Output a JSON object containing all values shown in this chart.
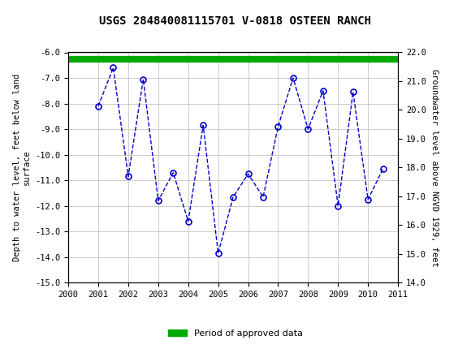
{
  "title": "USGS 284840081115701 V-0818 OSTEEN RANCH",
  "ylabel_left": "Depth to water level, feet below land\nsurface",
  "ylabel_right": "Groundwater level above NGVD 1929, feet",
  "background_color": "#ffffff",
  "plot_bg_color": "#ffffff",
  "grid_color": "#cccccc",
  "line_color": "#0000cc",
  "marker_color": "#0000cc",
  "bar_color": "#00aa00",
  "ylim_left": [
    -15.0,
    -6.0
  ],
  "ylim_right": [
    14.0,
    22.0
  ],
  "xlim": [
    2000,
    2011
  ],
  "yticks_left": [
    -15.0,
    -14.0,
    -13.0,
    -12.0,
    -11.0,
    -10.0,
    -9.0,
    -8.0,
    -7.0,
    -6.0
  ],
  "yticks_right": [
    14.0,
    15.0,
    16.0,
    17.0,
    18.0,
    19.0,
    20.0,
    21.0,
    22.0
  ],
  "xticks": [
    2000,
    2001,
    2002,
    2003,
    2004,
    2005,
    2006,
    2007,
    2008,
    2009,
    2010,
    2011
  ],
  "header_color": "#1a6b3c",
  "legend_label": "Period of approved data",
  "legend_bar_color": "#00aa00",
  "data_points_x": [
    2001.0,
    2001.5,
    2002.0,
    2002.5,
    2003.0,
    2003.5,
    2004.0,
    2004.5,
    2005.0,
    2005.5,
    2006.0,
    2006.5,
    2007.0,
    2007.5,
    2008.0,
    2008.5,
    2009.0,
    2009.5,
    2010.0,
    2010.5
  ],
  "data_points_y": [
    -8.1,
    -6.6,
    -10.85,
    -7.05,
    -11.8,
    -10.7,
    -12.6,
    -8.85,
    -13.85,
    -11.65,
    -10.75,
    -11.65,
    -8.9,
    -7.0,
    -9.0,
    -7.5,
    -12.0,
    -7.55,
    -11.75,
    -10.55
  ]
}
